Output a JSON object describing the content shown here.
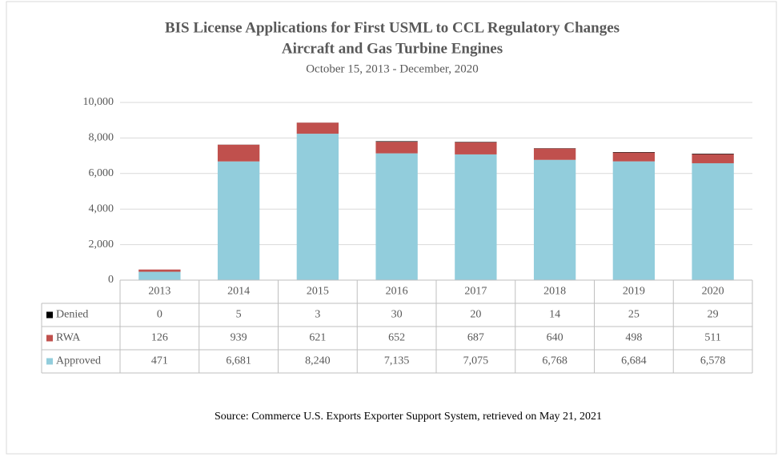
{
  "chart_data": {
    "type": "bar",
    "stacked": true,
    "title": "BIS License Applications for First USML to CCL Regulatory Changes",
    "subtitle": "Aircraft and Gas Turbine Engines",
    "period": "October 15, 2013 - December, 2020",
    "source": "Source: Commerce U.S. Exports Exporter Support System, retrieved on May 21, 2021",
    "categories": [
      "2013",
      "2014",
      "2015",
      "2016",
      "2017",
      "2018",
      "2019",
      "2020"
    ],
    "series": [
      {
        "name": "Denied",
        "color": "#000000",
        "values": [
          0,
          5,
          3,
          30,
          20,
          14,
          25,
          29
        ]
      },
      {
        "name": "RWA",
        "color": "#c0504d",
        "values": [
          126,
          939,
          621,
          652,
          687,
          640,
          498,
          511
        ]
      },
      {
        "name": "Approved",
        "color": "#92cddc",
        "values": [
          471,
          6681,
          8240,
          7135,
          7075,
          6768,
          6684,
          6578
        ],
        "value_labels": [
          "471",
          "6,681",
          "8,240",
          "7,135",
          "7,075",
          "6,768",
          "6,684",
          "6,578"
        ]
      }
    ],
    "ylim": [
      0,
      10000
    ],
    "yticks": [
      0,
      {
        "value": 2000,
        "label": "2,000"
      },
      {
        "value": 4000,
        "label": "4,000"
      },
      {
        "value": 6000,
        "label": "6,000"
      },
      {
        "value": 8000,
        "label": "8,000"
      },
      {
        "value": 10000,
        "label": "10,000"
      }
    ],
    "grid": true
  }
}
